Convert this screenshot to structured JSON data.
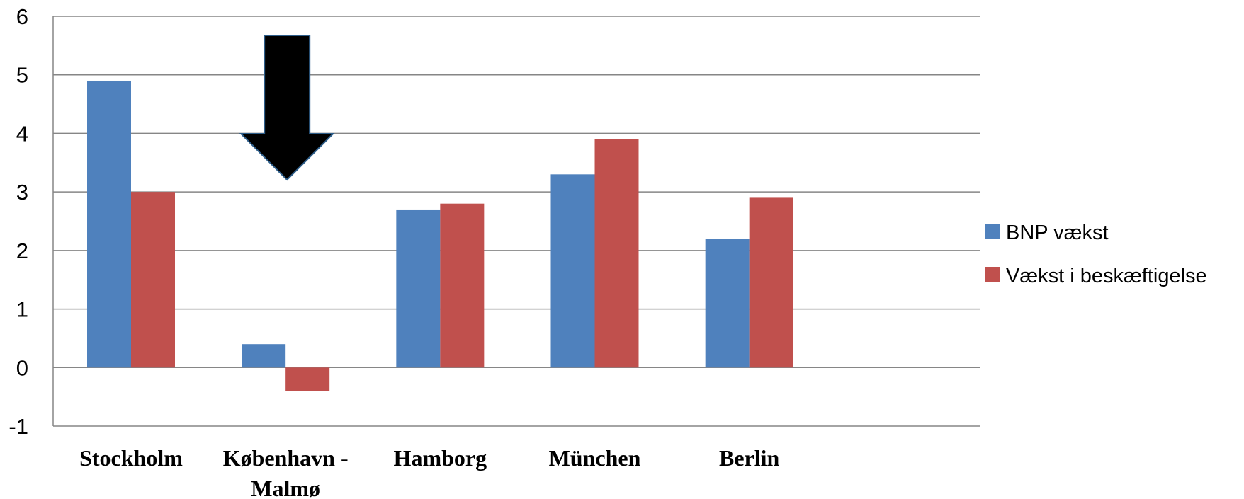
{
  "chart_data": {
    "type": "bar",
    "categories": [
      "Stockholm",
      "København - Malmø",
      "Hamborg",
      "München",
      "Berlin"
    ],
    "category_label_lines": [
      [
        "Stockholm"
      ],
      [
        "København -",
        "Malmø"
      ],
      [
        "Hamborg"
      ],
      [
        "München"
      ],
      [
        "Berlin"
      ]
    ],
    "series": [
      {
        "name": "BNP vækst",
        "color": "#4F81BD",
        "values": [
          4.9,
          0.4,
          2.7,
          3.3,
          2.2
        ]
      },
      {
        "name": "Vækst i beskæftigelse",
        "color": "#C0504D",
        "values": [
          3.0,
          -0.4,
          2.8,
          3.9,
          2.9
        ]
      }
    ],
    "ylim": [
      -1,
      6
    ],
    "yticks": [
      -1,
      0,
      1,
      2,
      3,
      4,
      5,
      6
    ],
    "grid": true,
    "legend_position": "right",
    "annotation": {
      "type": "arrow-down",
      "points_to": "København - Malmø",
      "color": "#000000"
    },
    "title": "",
    "xlabel": "",
    "ylabel": ""
  }
}
